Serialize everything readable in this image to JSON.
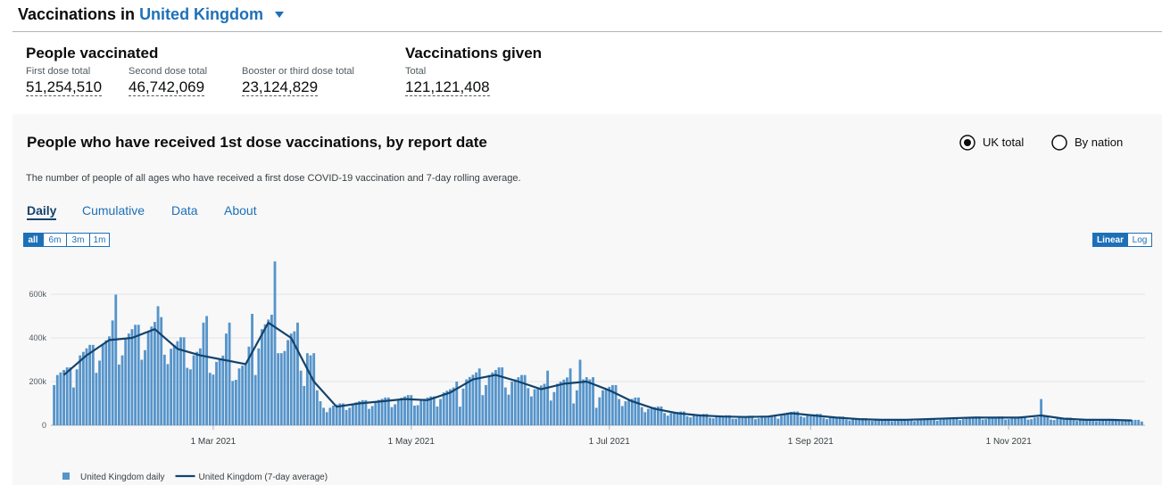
{
  "header": {
    "title": "Vaccinations in",
    "area": "United Kingdom"
  },
  "summary": {
    "people": {
      "title": "People vaccinated",
      "items": [
        {
          "label": "First dose total",
          "value": "51,254,510"
        },
        {
          "label": "Second dose total",
          "value": "46,742,069"
        },
        {
          "label": "Booster or third dose total",
          "value": "23,124,829"
        }
      ]
    },
    "given": {
      "title": "Vaccinations given",
      "items": [
        {
          "label": "Total",
          "value": "121,121,408"
        }
      ]
    }
  },
  "card": {
    "title": "People who have received 1st dose vaccinations, by report date",
    "options": [
      "UK total",
      "By nation"
    ],
    "description": "The number of people of all ages who have received a first dose COVID-19 vaccination and 7-day rolling average.",
    "tabs": [
      "Daily",
      "Cumulative",
      "Data",
      "About"
    ],
    "ranges": [
      "all",
      "6m",
      "3m",
      "1m"
    ],
    "scales": [
      "Linear",
      "Log"
    ]
  },
  "chart_data": {
    "type": "bar",
    "xlim": [
      "2021-01-10",
      "2021-12-13"
    ],
    "xticks": [
      {
        "value": "2021-03-01",
        "label": "1 Mar 2021"
      },
      {
        "value": "2021-05-01",
        "label": "1 May 2021"
      },
      {
        "value": "2021-07-01",
        "label": "1 Jul 2021"
      },
      {
        "value": "2021-09-01",
        "label": "1 Sep 2021"
      },
      {
        "value": "2021-11-01",
        "label": "1 Nov 2021"
      }
    ],
    "ylim": [
      0,
      800000
    ],
    "yticks": [
      0,
      {
        "value": 200000,
        "label": "200k"
      },
      {
        "value": 400000,
        "label": "400k"
      },
      {
        "value": 600000,
        "label": "600k"
      }
    ],
    "grid": true,
    "x": [
      "2021-01-11",
      "2021-01-12",
      "2021-01-13",
      "2021-01-14",
      "2021-01-15",
      "2021-01-16",
      "2021-01-17",
      "2021-01-18",
      "2021-01-19",
      "2021-01-20",
      "2021-01-21",
      "2021-01-22",
      "2021-01-23",
      "2021-01-24",
      "2021-01-25",
      "2021-01-26",
      "2021-01-27",
      "2021-01-28",
      "2021-01-29",
      "2021-01-30",
      "2021-01-31",
      "2021-02-01",
      "2021-02-02",
      "2021-02-03",
      "2021-02-04",
      "2021-02-05",
      "2021-02-06",
      "2021-02-07",
      "2021-02-08",
      "2021-02-09",
      "2021-02-10",
      "2021-02-11",
      "2021-02-12",
      "2021-02-13",
      "2021-02-14",
      "2021-02-15",
      "2021-02-16",
      "2021-02-17",
      "2021-02-18",
      "2021-02-19",
      "2021-02-20",
      "2021-02-21",
      "2021-02-22",
      "2021-02-23",
      "2021-02-24",
      "2021-02-25",
      "2021-02-26",
      "2021-02-27",
      "2021-02-28",
      "2021-03-01",
      "2021-03-02",
      "2021-03-03",
      "2021-03-04",
      "2021-03-05",
      "2021-03-06",
      "2021-03-07",
      "2021-03-08",
      "2021-03-09",
      "2021-03-10",
      "2021-03-11",
      "2021-03-12",
      "2021-03-13",
      "2021-03-14",
      "2021-03-15",
      "2021-03-16",
      "2021-03-17",
      "2021-03-18",
      "2021-03-19",
      "2021-03-20",
      "2021-03-21",
      "2021-03-22",
      "2021-03-23",
      "2021-03-24",
      "2021-03-25",
      "2021-03-26",
      "2021-03-27",
      "2021-03-28",
      "2021-03-29",
      "2021-03-30",
      "2021-03-31",
      "2021-04-01",
      "2021-04-02",
      "2021-04-03",
      "2021-04-04",
      "2021-04-05",
      "2021-04-06",
      "2021-04-07",
      "2021-04-08",
      "2021-04-09",
      "2021-04-10",
      "2021-04-11",
      "2021-04-12",
      "2021-04-13",
      "2021-04-14",
      "2021-04-15",
      "2021-04-16",
      "2021-04-17",
      "2021-04-18",
      "2021-04-19",
      "2021-04-20",
      "2021-04-21",
      "2021-04-22",
      "2021-04-23",
      "2021-04-24",
      "2021-04-25",
      "2021-04-26",
      "2021-04-27",
      "2021-04-28",
      "2021-04-29",
      "2021-04-30",
      "2021-05-01",
      "2021-05-02",
      "2021-05-03",
      "2021-05-04",
      "2021-05-05",
      "2021-05-06",
      "2021-05-07",
      "2021-05-08",
      "2021-05-09",
      "2021-05-10",
      "2021-05-11",
      "2021-05-12",
      "2021-05-13",
      "2021-05-14",
      "2021-05-15",
      "2021-05-16",
      "2021-05-17",
      "2021-05-18",
      "2021-05-19",
      "2021-05-20",
      "2021-05-21",
      "2021-05-22",
      "2021-05-23",
      "2021-05-24",
      "2021-05-25",
      "2021-05-26",
      "2021-05-27",
      "2021-05-28",
      "2021-05-29",
      "2021-05-30",
      "2021-05-31",
      "2021-06-01",
      "2021-06-02",
      "2021-06-03",
      "2021-06-04",
      "2021-06-05",
      "2021-06-06",
      "2021-06-07",
      "2021-06-08",
      "2021-06-09",
      "2021-06-10",
      "2021-06-11",
      "2021-06-12",
      "2021-06-13",
      "2021-06-14",
      "2021-06-15",
      "2021-06-16",
      "2021-06-17",
      "2021-06-18",
      "2021-06-19",
      "2021-06-20",
      "2021-06-21",
      "2021-06-22",
      "2021-06-23",
      "2021-06-24",
      "2021-06-25",
      "2021-06-26",
      "2021-06-27",
      "2021-06-28",
      "2021-06-29",
      "2021-06-30",
      "2021-07-01",
      "2021-07-02",
      "2021-07-03",
      "2021-07-04",
      "2021-07-05",
      "2021-07-06",
      "2021-07-07",
      "2021-07-08",
      "2021-07-09",
      "2021-07-10",
      "2021-07-11",
      "2021-07-12",
      "2021-07-13",
      "2021-07-14",
      "2021-07-15",
      "2021-07-16",
      "2021-07-17",
      "2021-07-18",
      "2021-07-19",
      "2021-07-20",
      "2021-07-21",
      "2021-07-22",
      "2021-07-23",
      "2021-07-24",
      "2021-07-25",
      "2021-07-26",
      "2021-07-27",
      "2021-07-28",
      "2021-07-29",
      "2021-07-30",
      "2021-07-31",
      "2021-08-01",
      "2021-08-02",
      "2021-08-03",
      "2021-08-04",
      "2021-08-05",
      "2021-08-06",
      "2021-08-07",
      "2021-08-08",
      "2021-08-09",
      "2021-08-10",
      "2021-08-11",
      "2021-08-12",
      "2021-08-13",
      "2021-08-14",
      "2021-08-15",
      "2021-08-16",
      "2021-08-17",
      "2021-08-18",
      "2021-08-19",
      "2021-08-20",
      "2021-08-21",
      "2021-08-22",
      "2021-08-23",
      "2021-08-24",
      "2021-08-25",
      "2021-08-26",
      "2021-08-27",
      "2021-08-28",
      "2021-08-29",
      "2021-08-30",
      "2021-08-31",
      "2021-09-01",
      "2021-09-02",
      "2021-09-03",
      "2021-09-04",
      "2021-09-05",
      "2021-09-06",
      "2021-09-07",
      "2021-09-08",
      "2021-09-09",
      "2021-09-10",
      "2021-09-11",
      "2021-09-12",
      "2021-09-13",
      "2021-09-14",
      "2021-09-15",
      "2021-09-16",
      "2021-09-17",
      "2021-09-18",
      "2021-09-19",
      "2021-09-20",
      "2021-09-21",
      "2021-09-22",
      "2021-09-23",
      "2021-09-24",
      "2021-09-25",
      "2021-09-26",
      "2021-09-27",
      "2021-09-28",
      "2021-09-29",
      "2021-09-30",
      "2021-10-01",
      "2021-10-02",
      "2021-10-03",
      "2021-10-04",
      "2021-10-05",
      "2021-10-06",
      "2021-10-07",
      "2021-10-08",
      "2021-10-09",
      "2021-10-10",
      "2021-10-11",
      "2021-10-12",
      "2021-10-13",
      "2021-10-14",
      "2021-10-15",
      "2021-10-16",
      "2021-10-17",
      "2021-10-18",
      "2021-10-19",
      "2021-10-20",
      "2021-10-21",
      "2021-10-22",
      "2021-10-23",
      "2021-10-24",
      "2021-10-25",
      "2021-10-26",
      "2021-10-27",
      "2021-10-28",
      "2021-10-29",
      "2021-10-30",
      "2021-10-31",
      "2021-11-01",
      "2021-11-02",
      "2021-11-03",
      "2021-11-04",
      "2021-11-05",
      "2021-11-06",
      "2021-11-07",
      "2021-11-08",
      "2021-11-09",
      "2021-11-10",
      "2021-11-11",
      "2021-11-12",
      "2021-11-13",
      "2021-11-14",
      "2021-11-15",
      "2021-11-16",
      "2021-11-17",
      "2021-11-18",
      "2021-11-19",
      "2021-11-20",
      "2021-11-21",
      "2021-11-22",
      "2021-11-23",
      "2021-11-24",
      "2021-11-25",
      "2021-11-26",
      "2021-11-27",
      "2021-11-28",
      "2021-11-29",
      "2021-11-30",
      "2021-12-01",
      "2021-12-02",
      "2021-12-03",
      "2021-12-04",
      "2021-12-05",
      "2021-12-06",
      "2021-12-07",
      "2021-12-08",
      "2021-12-09",
      "2021-12-10",
      "2021-12-11",
      "2021-12-12"
    ],
    "series": [
      {
        "name": "United Kingdom daily",
        "type": "bar",
        "color": "#5694ca",
        "values": [
          184000,
          230000,
          242000,
          253000,
          265000,
          265000,
          173000,
          256000,
          320000,
          336000,
          352000,
          368000,
          368000,
          240000,
          296000,
          370000,
          389000,
          407000,
          480000,
          598000,
          278000,
          320000,
          400000,
          420000,
          440000,
          460000,
          460000,
          300000,
          344000,
          430000,
          452000,
          473000,
          545000,
          495000,
          323000,
          280000,
          350000,
          368000,
          385000,
          403000,
          403000,
          263000,
          256000,
          320000,
          336000,
          352000,
          470000,
          500000,
          240000,
          232000,
          290000,
          305000,
          319000,
          420000,
          470000,
          203000,
          208000,
          260000,
          273000,
          286000,
          360000,
          510000,
          230000,
          352000,
          440000,
          462000,
          484000,
          506000,
          750000,
          330000,
          330000,
          340000,
          390000,
          420000,
          430000,
          470000,
          250000,
          180000,
          330000,
          320000,
          330000,
          160000,
          110000,
          80000,
          60000,
          80000,
          90000,
          95000,
          100000,
          100000,
          70000,
          80000,
          100000,
          105000,
          110000,
          115000,
          115000,
          75000,
          88000,
          110000,
          116000,
          121000,
          127000,
          127000,
          83000,
          96000,
          120000,
          126000,
          132000,
          138000,
          138000,
          90000,
          92000,
          115000,
          121000,
          127000,
          132000,
          132000,
          86000,
          120000,
          150000,
          158000,
          165000,
          173000,
          200000,
          85000,
          168000,
          210000,
          221000,
          231000,
          242000,
          260000,
          138000,
          184000,
          230000,
          242000,
          253000,
          265000,
          265000,
          173000,
          140000,
          200000,
          210000,
          220000,
          230000,
          230000,
          170000,
          132000,
          165000,
          173000,
          182000,
          190000,
          250000,
          113000,
          152000,
          190000,
          200000,
          209000,
          219000,
          260000,
          100000,
          160000,
          300000,
          210000,
          220000,
          210000,
          220000,
          80000,
          128000,
          160000,
          168000,
          176000,
          184000,
          184000,
          120000,
          88000,
          110000,
          116000,
          121000,
          127000,
          127000,
          83000,
          60000,
          75000,
          79000,
          83000,
          86000,
          86000,
          56000,
          44000,
          55000,
          58000,
          61000,
          63000,
          63000,
          41000,
          36000,
          45000,
          47000,
          50000,
          52000,
          52000,
          34000,
          32000,
          40000,
          42000,
          44000,
          46000,
          46000,
          30000,
          30000,
          38000,
          40000,
          42000,
          44000,
          44000,
          28000,
          32000,
          40000,
          42000,
          44000,
          46000,
          46000,
          30000,
          44000,
          55000,
          58000,
          61000,
          63000,
          63000,
          41000,
          36000,
          45000,
          47000,
          50000,
          52000,
          52000,
          34000,
          28000,
          35000,
          37000,
          39000,
          40000,
          40000,
          26000,
          22000,
          28000,
          29000,
          31000,
          32000,
          32000,
          21000,
          20000,
          25000,
          26000,
          28000,
          29000,
          29000,
          19000,
          20000,
          25000,
          26000,
          28000,
          29000,
          29000,
          19000,
          22000,
          28000,
          29000,
          31000,
          32000,
          32000,
          21000,
          26000,
          32000,
          34000,
          35000,
          37000,
          37000,
          24000,
          28000,
          35000,
          37000,
          39000,
          40000,
          40000,
          26000,
          28000,
          35000,
          37000,
          39000,
          40000,
          40000,
          26000,
          28000,
          35000,
          37000,
          39000,
          40000,
          40000,
          26000,
          28000,
          35000,
          37000,
          120000,
          40000,
          40000,
          26000,
          24000,
          30000,
          32000,
          33000,
          35000,
          35000,
          23000,
          20000,
          25000,
          26000,
          28000,
          29000,
          29000,
          19000,
          20000,
          25000,
          26000,
          28000,
          29000,
          29000,
          19000,
          18000,
          22000,
          23000,
          24000,
          25000,
          25000,
          17000
        ]
      },
      {
        "name": "United Kingdom (7-day average)",
        "type": "line",
        "color": "#12436d",
        "x": [
          "2021-01-14",
          "2021-01-21",
          "2021-01-28",
          "2021-02-04",
          "2021-02-11",
          "2021-02-18",
          "2021-02-25",
          "2021-03-04",
          "2021-03-11",
          "2021-03-18",
          "2021-03-25",
          "2021-04-01",
          "2021-04-08",
          "2021-04-15",
          "2021-04-22",
          "2021-04-29",
          "2021-05-06",
          "2021-05-13",
          "2021-05-20",
          "2021-05-27",
          "2021-06-03",
          "2021-06-10",
          "2021-06-17",
          "2021-06-24",
          "2021-07-01",
          "2021-07-08",
          "2021-07-15",
          "2021-07-22",
          "2021-07-29",
          "2021-08-05",
          "2021-08-12",
          "2021-08-19",
          "2021-08-26",
          "2021-09-02",
          "2021-09-09",
          "2021-09-16",
          "2021-09-23",
          "2021-09-30",
          "2021-10-07",
          "2021-10-14",
          "2021-10-21",
          "2021-10-28",
          "2021-11-04",
          "2021-11-11",
          "2021-11-18",
          "2021-11-25",
          "2021-12-02",
          "2021-12-09"
        ],
        "values": [
          230000,
          320000,
          390000,
          400000,
          440000,
          350000,
          320000,
          300000,
          280000,
          470000,
          400000,
          200000,
          85000,
          100000,
          110000,
          120000,
          115000,
          150000,
          210000,
          230000,
          200000,
          165000,
          190000,
          200000,
          160000,
          110000,
          75000,
          55000,
          45000,
          40000,
          38000,
          40000,
          55000,
          45000,
          35000,
          28000,
          25000,
          25000,
          28000,
          32000,
          35000,
          35000,
          35000,
          45000,
          30000,
          25000,
          25000,
          22000
        ]
      }
    ]
  }
}
